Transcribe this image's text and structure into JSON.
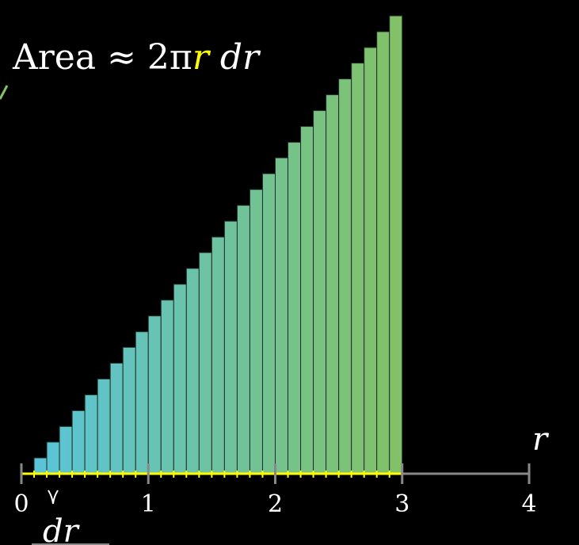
{
  "chart_data": {
    "type": "bar",
    "title_parts": {
      "prefix": "Area ≈ 2π",
      "variable": "r",
      "suffix": " dr"
    },
    "x_axis_label": "r",
    "dr_label": "dr",
    "x_ticks": [
      "0",
      "1",
      "2",
      "3",
      "4"
    ],
    "xlim": [
      0,
      4
    ],
    "ylim": [
      0,
      18.85
    ],
    "dr": 0.1,
    "bar_left_edges": [
      0.1,
      0.2,
      0.3,
      0.4,
      0.5,
      0.6,
      0.7,
      0.8,
      0.9,
      1.0,
      1.1,
      1.2,
      1.3,
      1.4,
      1.5,
      1.6,
      1.7,
      1.8,
      1.9,
      2.0,
      2.1,
      2.2,
      2.3,
      2.4,
      2.5,
      2.6,
      2.7,
      2.8,
      2.9
    ],
    "values": [
      0.63,
      1.26,
      1.88,
      2.51,
      3.14,
      3.77,
      4.4,
      5.03,
      5.65,
      6.28,
      6.91,
      7.54,
      8.17,
      8.8,
      9.42,
      10.05,
      10.68,
      11.31,
      11.94,
      12.57,
      13.19,
      13.82,
      14.45,
      15.08,
      15.71,
      16.34,
      16.96,
      17.59,
      18.22
    ],
    "colors": {
      "gradient_start": "#58C4DD",
      "gradient_end": "#83C167",
      "axis": "#888888",
      "small_ticks": "#FFFF00",
      "title_variable": "#FFFF00",
      "text": "#FFFFFF",
      "background": "#000000"
    }
  }
}
